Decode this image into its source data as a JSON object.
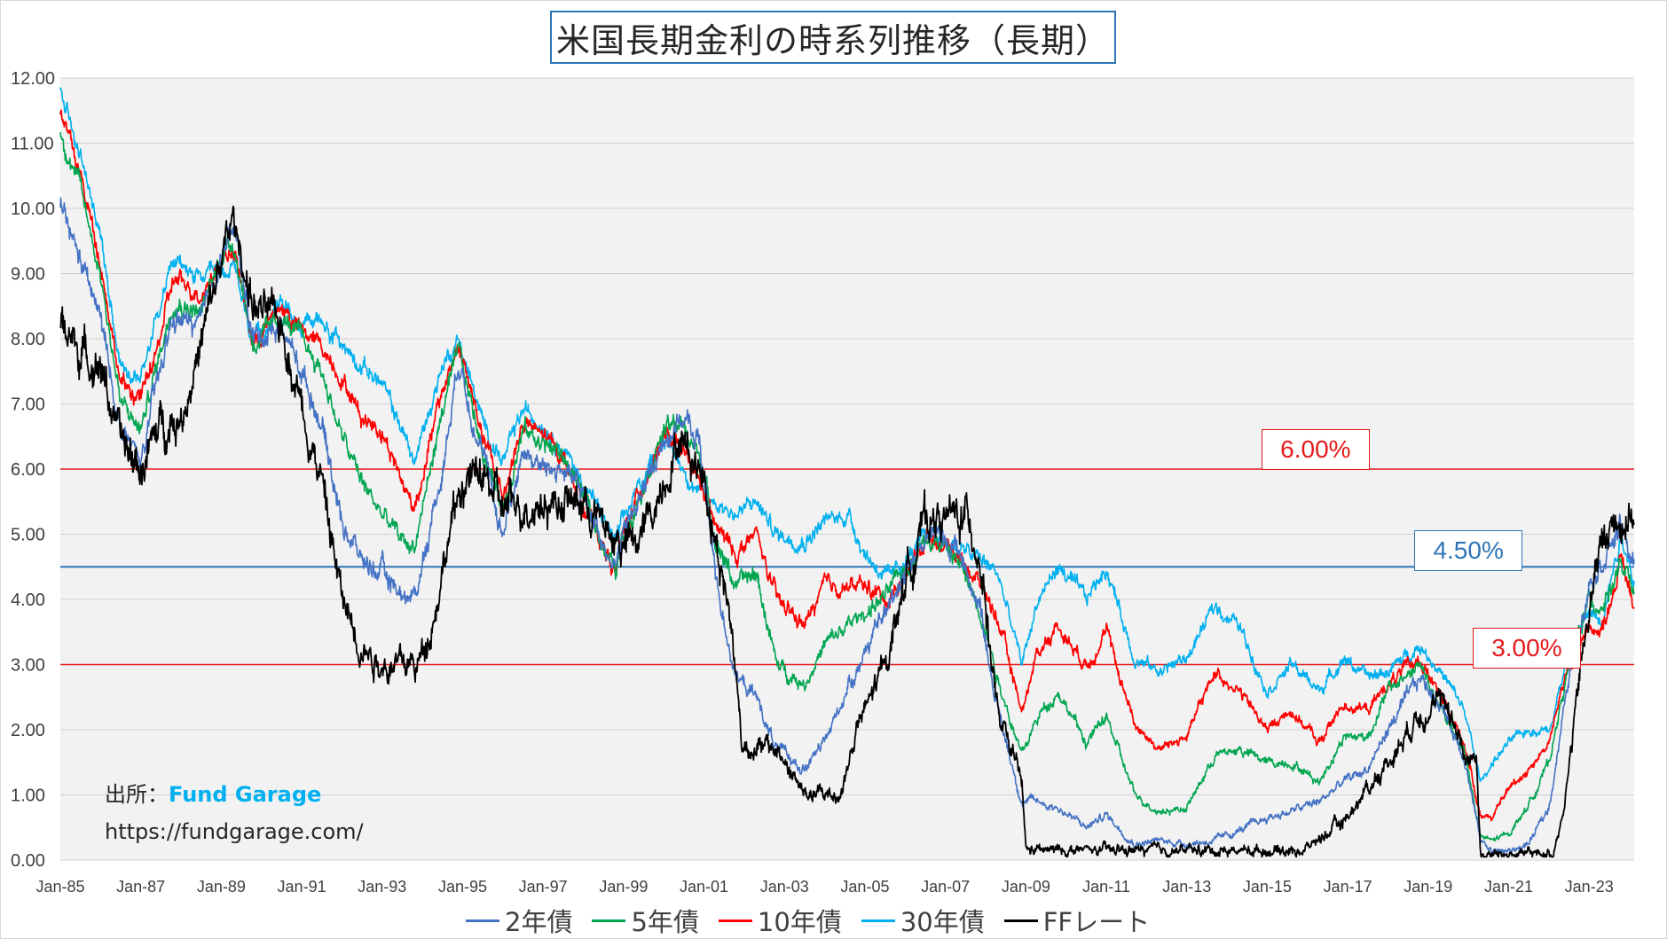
{
  "chart_data": {
    "type": "line",
    "title": "米国長期金利の時系列推移（長期）",
    "xlabel": "",
    "ylabel": "",
    "ylim": [
      0,
      12
    ],
    "xlim": [
      1985.0,
      2024.12
    ],
    "y_ticks": [
      "0.00",
      "1.00",
      "2.00",
      "3.00",
      "4.00",
      "5.00",
      "6.00",
      "7.00",
      "8.00",
      "9.00",
      "10.00",
      "11.00",
      "12.00"
    ],
    "x_ticks": [
      {
        "label": "Jan-85",
        "year": 1985
      },
      {
        "label": "Jan-87",
        "year": 1987
      },
      {
        "label": "Jan-89",
        "year": 1989
      },
      {
        "label": "Jan-91",
        "year": 1991
      },
      {
        "label": "Jan-93",
        "year": 1993
      },
      {
        "label": "Jan-95",
        "year": 1995
      },
      {
        "label": "Jan-97",
        "year": 1997
      },
      {
        "label": "Jan-99",
        "year": 1999
      },
      {
        "label": "Jan-01",
        "year": 2001
      },
      {
        "label": "Jan-03",
        "year": 2003
      },
      {
        "label": "Jan-05",
        "year": 2005
      },
      {
        "label": "Jan-07",
        "year": 2007
      },
      {
        "label": "Jan-09",
        "year": 2009
      },
      {
        "label": "Jan-11",
        "year": 2011
      },
      {
        "label": "Jan-13",
        "year": 2013
      },
      {
        "label": "Jan-15",
        "year": 2015
      },
      {
        "label": "Jan-17",
        "year": 2017
      },
      {
        "label": "Jan-19",
        "year": 2019
      },
      {
        "label": "Jan-21",
        "year": 2021
      },
      {
        "label": "Jan-23",
        "year": 2023
      }
    ],
    "grid": true,
    "legend_position": "bottom",
    "reference_lines": [
      {
        "value": 6.0,
        "label": "6.00%",
        "color": "#e41a1c",
        "label_year": 2016.2,
        "label_value": 6.3
      },
      {
        "value": 4.5,
        "label": "4.50%",
        "color": "#2e75b6",
        "label_year": 2020.0,
        "label_value": 4.75
      },
      {
        "value": 3.0,
        "label": "3.00%",
        "color": "#e41a1c",
        "label_year": 2021.45,
        "label_value": 3.25
      }
    ],
    "series": [
      {
        "name": "2年債",
        "color": "#4472c4",
        "width": 1.6,
        "noise": 0.18,
        "x": [
          1985.0,
          1985.5,
          1986.0,
          1986.5,
          1987.0,
          1987.4,
          1987.8,
          1988.5,
          1989.0,
          1989.3,
          1989.8,
          1990.5,
          1991.0,
          1991.5,
          1992.0,
          1992.5,
          1993.0,
          1993.5,
          1993.8,
          1994.5,
          1994.9,
          1995.5,
          1996.0,
          1996.5,
          1997.0,
          1997.5,
          1998.0,
          1998.8,
          1999.0,
          1999.5,
          2000.0,
          2000.4,
          2000.9,
          2001.3,
          2001.8,
          2002.3,
          2002.8,
          2003.5,
          2004.0,
          2004.6,
          2005.0,
          2005.6,
          2006.0,
          2006.6,
          2007.3,
          2007.9,
          2008.3,
          2008.9,
          2009.3,
          2009.8,
          2010.5,
          2011.0,
          2011.7,
          2012.3,
          2013.0,
          2013.7,
          2014.3,
          2015.0,
          2015.6,
          2016.3,
          2016.9,
          2017.5,
          2018.0,
          2018.8,
          2019.3,
          2019.9,
          2020.3,
          2020.6,
          2021.0,
          2021.5,
          2022.0,
          2022.5,
          2023.0,
          2023.3,
          2023.8,
          2024.12
        ],
        "y": [
          10.0,
          9.2,
          8.3,
          6.6,
          6.1,
          7.3,
          8.3,
          8.2,
          9.3,
          9.7,
          8.0,
          8.2,
          7.5,
          6.7,
          5.2,
          4.6,
          4.4,
          4.1,
          4.0,
          6.0,
          7.7,
          6.2,
          5.0,
          6.3,
          6.0,
          6.0,
          5.6,
          4.5,
          5.0,
          5.7,
          6.4,
          6.8,
          6.4,
          4.3,
          2.8,
          2.5,
          1.7,
          1.4,
          1.8,
          2.7,
          3.2,
          3.9,
          4.5,
          5.0,
          4.8,
          3.8,
          2.3,
          0.9,
          0.9,
          0.8,
          0.5,
          0.7,
          0.25,
          0.3,
          0.25,
          0.3,
          0.45,
          0.65,
          0.75,
          0.9,
          1.2,
          1.4,
          2.0,
          2.8,
          2.4,
          1.6,
          0.3,
          0.15,
          0.13,
          0.25,
          0.8,
          2.8,
          4.3,
          4.6,
          5.1,
          4.5
        ]
      },
      {
        "name": "5年債",
        "color": "#00a550",
        "width": 1.6,
        "noise": 0.15,
        "x": [
          1985.0,
          1985.5,
          1986.0,
          1986.5,
          1987.0,
          1987.4,
          1987.8,
          1988.5,
          1989.0,
          1989.3,
          1989.8,
          1990.5,
          1991.0,
          1991.5,
          1992.0,
          1992.5,
          1993.0,
          1993.5,
          1993.8,
          1994.5,
          1994.9,
          1995.5,
          1996.0,
          1996.5,
          1997.0,
          1997.5,
          1998.0,
          1998.8,
          1999.0,
          1999.5,
          2000.0,
          2000.4,
          2000.9,
          2001.3,
          2001.8,
          2002.3,
          2002.8,
          2003.5,
          2004.0,
          2004.6,
          2005.0,
          2005.6,
          2006.0,
          2006.6,
          2007.3,
          2007.9,
          2008.3,
          2008.9,
          2009.3,
          2009.8,
          2010.5,
          2011.0,
          2011.7,
          2012.3,
          2013.0,
          2013.7,
          2014.3,
          2015.0,
          2015.6,
          2016.3,
          2016.9,
          2017.5,
          2018.0,
          2018.8,
          2019.3,
          2019.9,
          2020.3,
          2020.6,
          2021.0,
          2021.5,
          2022.0,
          2022.5,
          2023.0,
          2023.3,
          2023.8,
          2024.12
        ],
        "y": [
          11.2,
          10.3,
          9.0,
          7.0,
          6.6,
          7.6,
          8.6,
          8.4,
          9.3,
          9.5,
          7.9,
          8.3,
          8.0,
          7.5,
          6.5,
          5.8,
          5.3,
          4.9,
          4.8,
          6.9,
          7.8,
          6.3,
          5.4,
          6.6,
          6.4,
          6.2,
          5.6,
          4.4,
          5.0,
          5.8,
          6.6,
          6.7,
          6.2,
          4.9,
          4.2,
          4.4,
          3.0,
          2.7,
          3.3,
          3.6,
          3.8,
          4.1,
          4.5,
          5.0,
          4.6,
          3.8,
          2.8,
          1.6,
          2.2,
          2.6,
          1.8,
          2.2,
          1.0,
          0.75,
          0.8,
          1.6,
          1.7,
          1.5,
          1.5,
          1.2,
          1.9,
          1.9,
          2.6,
          3.0,
          2.3,
          1.7,
          0.35,
          0.3,
          0.4,
          0.85,
          1.5,
          3.0,
          4.0,
          3.9,
          4.5,
          4.1
        ]
      },
      {
        "name": "10年債",
        "color": "#ff0000",
        "width": 1.7,
        "noise": 0.14,
        "x": [
          1985.0,
          1985.5,
          1986.0,
          1986.5,
          1987.0,
          1987.4,
          1987.8,
          1988.5,
          1989.0,
          1989.3,
          1989.8,
          1990.5,
          1991.0,
          1991.5,
          1992.0,
          1992.5,
          1993.0,
          1993.5,
          1993.8,
          1994.5,
          1994.9,
          1995.5,
          1996.0,
          1996.5,
          1997.0,
          1997.5,
          1998.0,
          1998.8,
          1999.0,
          1999.5,
          2000.0,
          2000.4,
          2000.9,
          2001.3,
          2001.8,
          2002.3,
          2002.8,
          2003.5,
          2004.0,
          2004.6,
          2005.0,
          2005.6,
          2006.0,
          2006.6,
          2007.3,
          2007.9,
          2008.3,
          2008.9,
          2009.3,
          2009.8,
          2010.5,
          2011.0,
          2011.7,
          2012.3,
          2013.0,
          2013.7,
          2014.3,
          2015.0,
          2015.6,
          2016.3,
          2016.9,
          2017.5,
          2018.0,
          2018.8,
          2019.3,
          2019.9,
          2020.3,
          2020.6,
          2021.0,
          2021.5,
          2022.0,
          2022.5,
          2023.0,
          2023.3,
          2023.8,
          2024.12
        ],
        "y": [
          11.5,
          10.5,
          9.2,
          7.3,
          7.1,
          7.8,
          8.9,
          8.7,
          9.2,
          9.4,
          7.9,
          8.5,
          8.1,
          7.9,
          7.4,
          6.8,
          6.6,
          5.8,
          5.4,
          7.2,
          7.9,
          6.5,
          5.6,
          6.7,
          6.5,
          6.2,
          5.5,
          4.4,
          5.0,
          5.8,
          6.5,
          6.3,
          5.8,
          5.1,
          4.7,
          5.0,
          4.0,
          3.6,
          4.2,
          4.2,
          4.2,
          4.0,
          4.4,
          5.0,
          4.7,
          4.2,
          3.7,
          2.3,
          3.2,
          3.6,
          3.0,
          3.5,
          2.1,
          1.7,
          1.9,
          2.9,
          2.6,
          2.0,
          2.3,
          1.8,
          2.4,
          2.3,
          2.7,
          3.1,
          2.5,
          1.8,
          0.7,
          0.65,
          1.1,
          1.4,
          1.8,
          3.0,
          3.6,
          3.5,
          4.6,
          3.9
        ]
      },
      {
        "name": "30年債",
        "color": "#00b0f0",
        "width": 1.6,
        "noise": 0.13,
        "x": [
          1985.0,
          1985.5,
          1986.0,
          1986.5,
          1987.0,
          1987.4,
          1987.8,
          1988.5,
          1989.0,
          1989.3,
          1989.8,
          1990.5,
          1991.0,
          1991.5,
          1992.0,
          1992.5,
          1993.0,
          1993.5,
          1993.8,
          1994.5,
          1994.9,
          1995.5,
          1996.0,
          1996.5,
          1997.0,
          1997.5,
          1998.0,
          1998.8,
          1999.0,
          1999.5,
          2000.0,
          2000.4,
          2000.9,
          2001.3,
          2001.8,
          2002.3,
          2002.8,
          2003.5,
          2004.0,
          2004.6,
          2005.0,
          2005.6,
          2006.0,
          2006.6,
          2007.3,
          2007.9,
          2008.3,
          2008.9,
          2009.3,
          2009.8,
          2010.5,
          2011.0,
          2011.7,
          2012.3,
          2013.0,
          2013.7,
          2014.3,
          2015.0,
          2015.6,
          2016.3,
          2016.9,
          2017.5,
          2018.0,
          2018.8,
          2019.3,
          2019.9,
          2020.3,
          2020.6,
          2021.0,
          2021.5,
          2022.0,
          2022.5,
          2023.0,
          2023.3,
          2023.8,
          2024.12
        ],
        "y": [
          11.8,
          10.8,
          9.6,
          7.6,
          7.4,
          8.4,
          9.2,
          8.9,
          9.0,
          9.1,
          7.9,
          8.6,
          8.2,
          8.3,
          7.9,
          7.6,
          7.3,
          6.6,
          6.1,
          7.6,
          8.0,
          6.7,
          6.1,
          6.9,
          6.7,
          6.3,
          5.8,
          4.9,
          5.2,
          5.9,
          6.5,
          6.1,
          5.6,
          5.5,
          5.3,
          5.5,
          5.0,
          4.9,
          5.2,
          5.3,
          4.7,
          4.3,
          4.6,
          5.0,
          4.8,
          4.6,
          4.4,
          3.0,
          4.0,
          4.5,
          4.0,
          4.5,
          3.1,
          2.9,
          3.1,
          3.9,
          3.6,
          2.6,
          3.0,
          2.6,
          3.1,
          2.8,
          2.9,
          3.3,
          2.9,
          2.3,
          1.2,
          1.5,
          1.8,
          2.0,
          2.0,
          3.2,
          3.8,
          3.7,
          5.0,
          4.3
        ]
      },
      {
        "name": "FFレート",
        "color": "#000000",
        "width": 1.8,
        "noise": 0.3,
        "x": [
          1985.0,
          1985.5,
          1986.0,
          1986.5,
          1987.0,
          1987.5,
          1988.0,
          1988.5,
          1989.0,
          1989.3,
          1989.8,
          1990.5,
          1991.0,
          1991.5,
          1992.0,
          1992.5,
          1993.0,
          1993.5,
          1993.9,
          1994.3,
          1994.6,
          1995.0,
          1995.5,
          1996.0,
          1997.0,
          1998.0,
          1998.8,
          1999.3,
          1999.8,
          2000.4,
          2001.0,
          2001.3,
          2001.7,
          2001.95,
          2002.8,
          2003.5,
          2004.4,
          2004.8,
          2005.5,
          2006.0,
          2006.5,
          2007.6,
          2007.9,
          2008.3,
          2008.9,
          2009.0,
          2015.9,
          2016.9,
          2017.5,
          2018.0,
          2018.8,
          2019.5,
          2019.9,
          2020.2,
          2020.3,
          2022.1,
          2022.4,
          2022.8,
          2023.2,
          2023.5,
          2024.12
        ],
        "y": [
          8.3,
          7.8,
          7.6,
          6.4,
          6.0,
          6.7,
          6.8,
          7.9,
          9.2,
          9.8,
          8.5,
          8.2,
          7.0,
          5.8,
          4.0,
          3.3,
          3.0,
          3.0,
          3.0,
          3.8,
          4.8,
          5.8,
          5.9,
          5.4,
          5.5,
          5.5,
          4.9,
          4.8,
          5.5,
          6.5,
          5.9,
          4.9,
          3.5,
          1.75,
          1.7,
          1.0,
          1.0,
          2.0,
          3.0,
          4.3,
          5.25,
          5.25,
          4.5,
          2.2,
          1.2,
          0.15,
          0.15,
          0.6,
          1.1,
          1.5,
          2.3,
          2.4,
          1.6,
          1.6,
          0.08,
          0.1,
          0.9,
          3.0,
          4.6,
          5.1,
          5.33
        ]
      }
    ]
  },
  "source": {
    "label": "出所：",
    "name": "Fund Garage",
    "url": "https://fundgarage.com/"
  }
}
